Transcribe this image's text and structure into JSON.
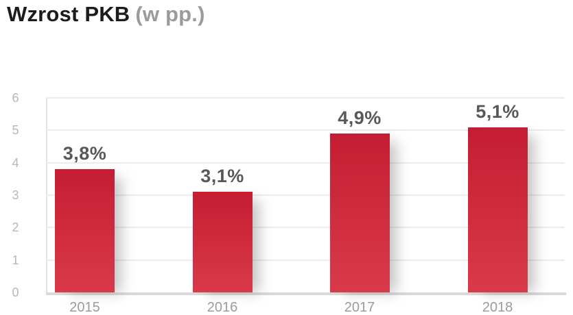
{
  "title": {
    "main": "Wzrost PKB",
    "suffix": "(w pp.)"
  },
  "chart_data": {
    "type": "bar",
    "title": "Wzrost PKB (w pp.)",
    "categories": [
      "2015",
      "2016",
      "2017",
      "2018"
    ],
    "values": [
      3.8,
      3.1,
      4.9,
      5.1
    ],
    "value_labels": [
      "3,8%",
      "3,1%",
      "4,9%",
      "5,1%"
    ],
    "xlabel": "",
    "ylabel": "",
    "ylim": [
      0,
      6
    ],
    "yticks": [
      0,
      1,
      2,
      3,
      4,
      5,
      6
    ],
    "grid": true,
    "legend": false,
    "decimal_separator": ",",
    "colors": {
      "bar_top": "#c41d33",
      "bar_bottom": "#d93a4a",
      "value_label": "#58585b",
      "x_tick_label": "#9b9b9b",
      "y_tick_label": "#b7b7b9",
      "gridline": "#ececec",
      "axis_line": "#d9d9d9",
      "title_main": "#1c1c1c",
      "title_suffix": "#999b9d",
      "background": "#ffffff"
    }
  }
}
